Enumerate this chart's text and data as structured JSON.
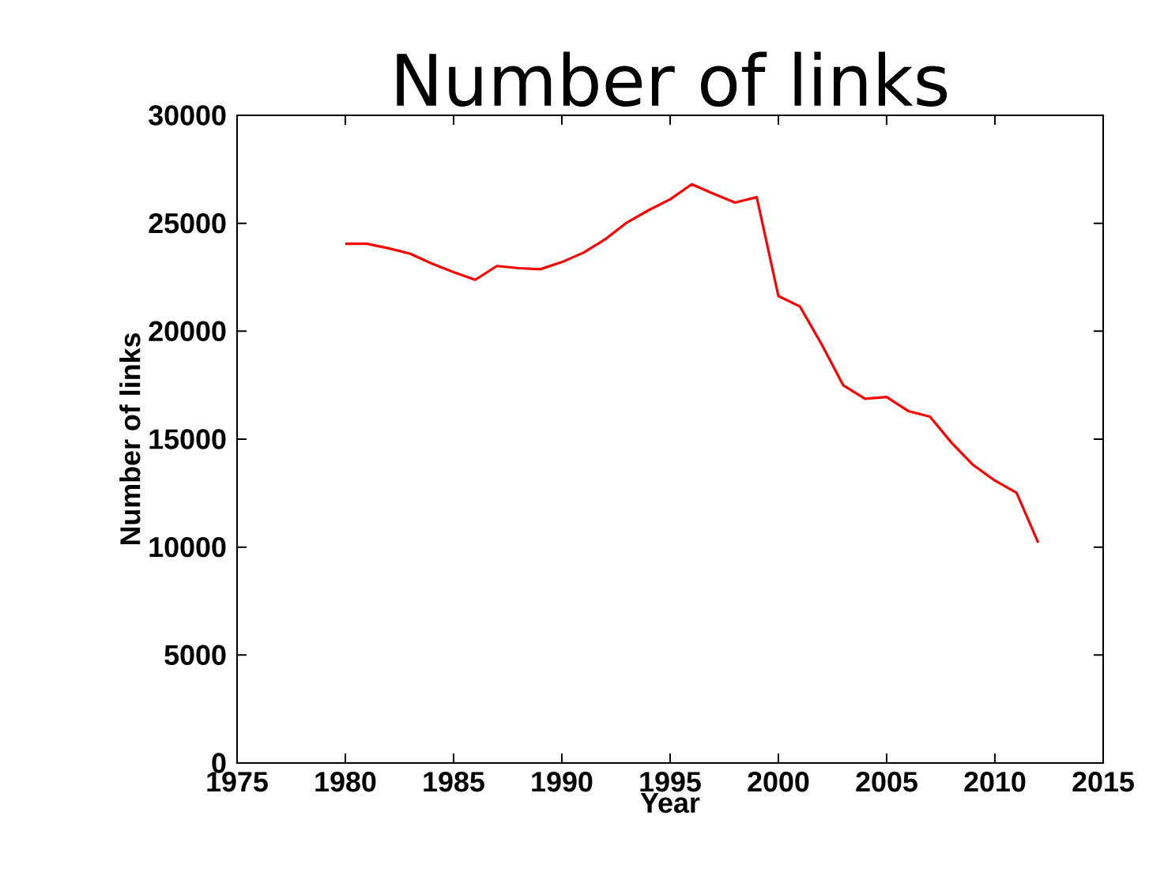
{
  "chart_data": {
    "type": "line",
    "title": "Number of links",
    "xlabel": "Year",
    "ylabel": "Number of links",
    "x": [
      1980,
      1981,
      1982,
      1983,
      1984,
      1985,
      1986,
      1987,
      1988,
      1989,
      1990,
      1991,
      1992,
      1993,
      1994,
      1995,
      1996,
      1997,
      1998,
      1999,
      2000,
      2001,
      2002,
      2003,
      2004,
      2005,
      2006,
      2007,
      2008,
      2009,
      2010,
      2011,
      2012
    ],
    "series": [
      {
        "color": "#ff0000",
        "values": [
          24050,
          24050,
          23840,
          23590,
          23130,
          22740,
          22380,
          23020,
          22920,
          22870,
          23200,
          23640,
          24260,
          25030,
          25600,
          26110,
          26810,
          26370,
          25960,
          26210,
          21630,
          21140,
          19390,
          17490,
          16870,
          16950,
          16300,
          16040,
          14830,
          13800,
          13080,
          12520,
          10200
        ]
      }
    ],
    "xlim": [
      1975,
      2015
    ],
    "ylim": [
      0,
      30000
    ],
    "xticks": [
      1975,
      1980,
      1985,
      1990,
      1995,
      2000,
      2005,
      2010,
      2015
    ],
    "yticks": [
      0,
      5000,
      10000,
      15000,
      20000,
      25000,
      30000
    ],
    "grid": false
  }
}
